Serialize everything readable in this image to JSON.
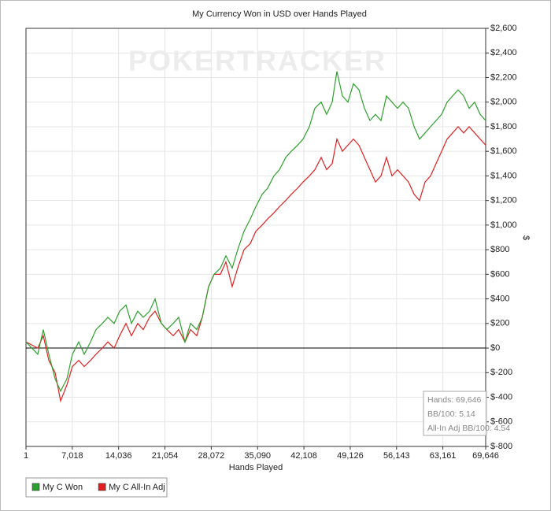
{
  "chart_data": {
    "type": "line",
    "title": "My Currency Won in USD over Hands Played",
    "watermark": "POKERTRACKER",
    "xlabel": "Hands Played",
    "ylabel": "$",
    "grid": true,
    "legend": "bottom-left",
    "x": [
      1,
      1790,
      2625,
      3460,
      4410,
      5250,
      6200,
      7040,
      7990,
      8830,
      9780,
      10615,
      11570,
      12400,
      13360,
      14190,
      15150,
      15980,
      16930,
      17770,
      18720,
      19560,
      20510,
      21350,
      22300,
      23140,
      24090,
      24925,
      25880,
      26710,
      27670,
      28500,
      29460,
      30290,
      31240,
      32080,
      33030,
      33990,
      34820,
      35780,
      36610,
      37570,
      38400,
      39360,
      40190,
      41140,
      41980,
      42930,
      43770,
      44720,
      45560,
      46390,
      47110,
      47940,
      48780,
      49610,
      50450,
      51280,
      52120,
      52950,
      53790,
      54620,
      55460,
      56290,
      57130,
      57960,
      58800,
      59630,
      60460,
      61300,
      62130,
      62970,
      63800,
      64640,
      65470,
      66310,
      67140,
      67980,
      68810,
      69646
    ],
    "series": [
      {
        "name": "My C Won",
        "color": "#2ca02c",
        "values": [
          50,
          -50,
          150,
          -50,
          -250,
          -350,
          -250,
          -50,
          50,
          -50,
          50,
          150,
          200,
          250,
          200,
          300,
          350,
          200,
          300,
          250,
          300,
          400,
          200,
          150,
          200,
          250,
          50,
          200,
          150,
          250,
          500,
          600,
          650,
          750,
          650,
          800,
          950,
          1050,
          1150,
          1250,
          1300,
          1400,
          1450,
          1550,
          1600,
          1650,
          1700,
          1800,
          1950,
          2000,
          1900,
          2000,
          2250,
          2050,
          2000,
          2150,
          2100,
          1950,
          1850,
          1900,
          1850,
          2050,
          2000,
          1950,
          2000,
          1950,
          1800,
          1700,
          1750,
          1800,
          1850,
          1900,
          2000,
          2050,
          2100,
          2050,
          1950,
          2000,
          1900,
          1850
        ]
      },
      {
        "name": "My C All-In Adj",
        "color": "#e02020",
        "values": [
          50,
          0,
          100,
          -100,
          -200,
          -430,
          -300,
          -150,
          -100,
          -150,
          -100,
          -50,
          0,
          50,
          0,
          100,
          200,
          100,
          200,
          150,
          250,
          300,
          200,
          150,
          100,
          150,
          50,
          150,
          100,
          250,
          500,
          600,
          600,
          700,
          500,
          650,
          800,
          850,
          950,
          1000,
          1050,
          1100,
          1150,
          1200,
          1250,
          1300,
          1350,
          1400,
          1450,
          1550,
          1450,
          1500,
          1700,
          1600,
          1650,
          1700,
          1650,
          1550,
          1450,
          1350,
          1400,
          1550,
          1400,
          1450,
          1400,
          1350,
          1250,
          1200,
          1350,
          1400,
          1500,
          1600,
          1700,
          1750,
          1800,
          1750,
          1800,
          1750,
          1700,
          1650
        ]
      }
    ],
    "xlim": [
      1,
      69646
    ],
    "xticks": [
      1,
      {
        "value": 7018,
        "label": "7,018"
      },
      {
        "value": 14036,
        "label": "14,036"
      },
      {
        "value": 21054,
        "label": "21,054"
      },
      {
        "value": 28072,
        "label": "28,072"
      },
      {
        "value": 35090,
        "label": "35,090"
      },
      {
        "value": 42108,
        "label": "42,108"
      },
      {
        "value": 49126,
        "label": "49,126"
      },
      {
        "value": 56143,
        "label": "56,143"
      },
      {
        "value": 63161,
        "label": "63,161"
      },
      {
        "value": 69646,
        "label": "69,646"
      }
    ],
    "ylim": [
      -800,
      2600
    ],
    "yticks": [
      {
        "value": -800,
        "label": "$-800"
      },
      {
        "value": -600,
        "label": "$-600"
      },
      {
        "value": -400,
        "label": "$-400"
      },
      {
        "value": -200,
        "label": "$-200"
      },
      {
        "value": 0,
        "label": "$0"
      },
      {
        "value": 200,
        "label": "$200"
      },
      {
        "value": 400,
        "label": "$400"
      },
      {
        "value": 600,
        "label": "$600"
      },
      {
        "value": 800,
        "label": "$800"
      },
      {
        "value": 1000,
        "label": "$1,000"
      },
      {
        "value": 1200,
        "label": "$1,200"
      },
      {
        "value": 1400,
        "label": "$1,400"
      },
      {
        "value": 1600,
        "label": "$1,600"
      },
      {
        "value": 1800,
        "label": "$1,800"
      },
      {
        "value": 2000,
        "label": "$2,000"
      },
      {
        "value": 2200,
        "label": "$2,200"
      },
      {
        "value": 2400,
        "label": "$2,400"
      },
      {
        "value": 2600,
        "label": "$2,600"
      }
    ],
    "annotations": [
      "Hands: 69,646",
      "BB/100: 5.14",
      "All-In Adj BB/100: 4.54"
    ]
  }
}
